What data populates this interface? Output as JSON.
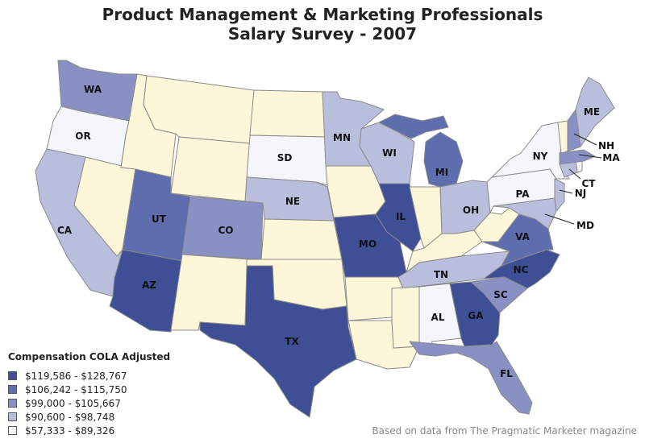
{
  "title": {
    "line1": "Product Management & Marketing Professionals",
    "line2": "Salary Survey - 2007"
  },
  "legend": {
    "title": "Compensation COLA Adjusted",
    "items": [
      {
        "label": "$119,586 - $128,767",
        "color": "#3f4f96"
      },
      {
        "label": "$106,242 - $115,750",
        "color": "#5e6dad"
      },
      {
        "label": "$99,000 - $105,667",
        "color": "#8890c4"
      },
      {
        "label": "$90,600 - $98,748",
        "color": "#b9bedd"
      },
      {
        "label": "$57,333 - $89,326",
        "color": "#f4f6fc"
      }
    ],
    "unreported_color": "#fdf6d8"
  },
  "source": "Based on data from The Pragmatic Marketer magazine",
  "states": {
    "WA": "WA",
    "OR": "OR",
    "CA": "CA",
    "AZ": "AZ",
    "UT": "UT",
    "CO": "CO",
    "SD": "SD",
    "NE": "NE",
    "MN": "MN",
    "WI": "WI",
    "MO": "MO",
    "IL": "IL",
    "MI": "MI",
    "OH": "OH",
    "TX": "TX",
    "TN": "TN",
    "AL": "AL",
    "GA": "GA",
    "SC": "SC",
    "NC": "NC",
    "VA": "VA",
    "FL": "FL",
    "PA": "PA",
    "NY": "NY",
    "ME": "ME",
    "NH": "NH",
    "MA": "MA",
    "CT": "CT",
    "NJ": "NJ",
    "MD": "MD"
  }
}
